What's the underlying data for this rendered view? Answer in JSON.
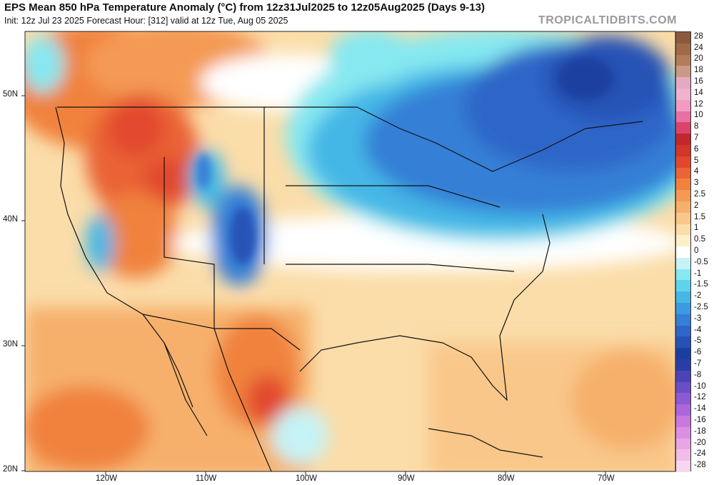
{
  "header": {
    "title": "EPS Mean 850 hPa Temperature Anomaly (°C) from 12z31Jul2025 to 12z05Aug2025 (Days 9-13)",
    "subtitle": "Init: 12z Jul 23 2025   Forecast Hour: [312]   valid at 12z Tue, Aug 05 2025",
    "brand": "TROPICALTIDBITS.COM"
  },
  "axes": {
    "lat_labels": [
      "50N",
      "40N",
      "30N",
      "20N"
    ],
    "lon_labels": [
      "120W",
      "110W",
      "100W",
      "90W",
      "80W",
      "70W"
    ]
  },
  "legend": {
    "levels": [
      {
        "label": "28",
        "color": "#8a5a3c"
      },
      {
        "label": "24",
        "color": "#a06a48"
      },
      {
        "label": "20",
        "color": "#b47c5a"
      },
      {
        "label": "18",
        "color": "#c99a86"
      },
      {
        "label": "16",
        "color": "#e6a9c3"
      },
      {
        "label": "14",
        "color": "#f0b2cf"
      },
      {
        "label": "12",
        "color": "#f39ac0"
      },
      {
        "label": "10",
        "color": "#e870a4"
      },
      {
        "label": "8",
        "color": "#d9456a"
      },
      {
        "label": "7",
        "color": "#c1272d"
      },
      {
        "label": "6",
        "color": "#d2362a"
      },
      {
        "label": "5",
        "color": "#e2482e"
      },
      {
        "label": "4",
        "color": "#ea6436"
      },
      {
        "label": "3",
        "color": "#f0823e"
      },
      {
        "label": "2.5",
        "color": "#f49a55"
      },
      {
        "label": "2",
        "color": "#f6b06c"
      },
      {
        "label": "1.5",
        "color": "#f9c78a"
      },
      {
        "label": "1",
        "color": "#fbdda9"
      },
      {
        "label": "0.5",
        "color": "#fdf0c8"
      },
      {
        "label": "0",
        "color": "#ffffff"
      },
      {
        "label": "-0.5",
        "color": "#c6f3f6"
      },
      {
        "label": "-1",
        "color": "#86e8f0"
      },
      {
        "label": "-1.5",
        "color": "#5fd3ec"
      },
      {
        "label": "-2",
        "color": "#45b7e6"
      },
      {
        "label": "-2.5",
        "color": "#3c9ae0"
      },
      {
        "label": "-3",
        "color": "#357fd6"
      },
      {
        "label": "-4",
        "color": "#2d66c8"
      },
      {
        "label": "-5",
        "color": "#2552b6"
      },
      {
        "label": "-6",
        "color": "#1c3f9f"
      },
      {
        "label": "-7",
        "color": "#2a3da6"
      },
      {
        "label": "-8",
        "color": "#4b44b8"
      },
      {
        "label": "-10",
        "color": "#6a4ec6"
      },
      {
        "label": "-12",
        "color": "#8c5ad2"
      },
      {
        "label": "-14",
        "color": "#ad66d9"
      },
      {
        "label": "-16",
        "color": "#c978de"
      },
      {
        "label": "-18",
        "color": "#dc8fe2"
      },
      {
        "label": "-20",
        "color": "#e8a6e6"
      },
      {
        "label": "-24",
        "color": "#f0bde9"
      },
      {
        "label": "-28",
        "color": "#f7d6ee"
      }
    ]
  }
}
